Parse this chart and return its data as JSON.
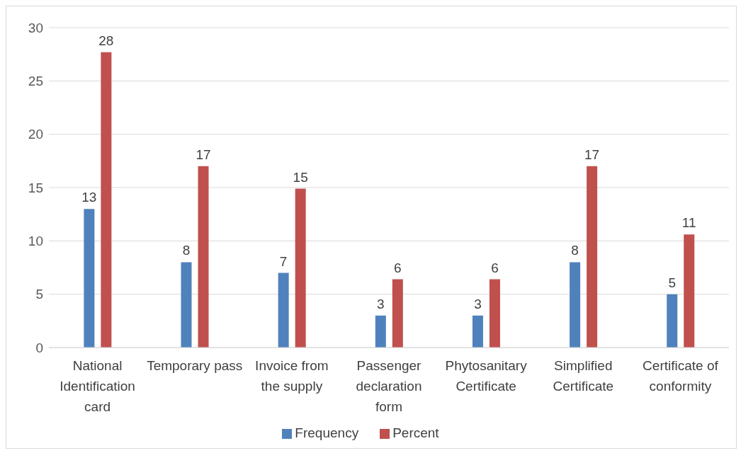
{
  "chart_data": {
    "type": "bar",
    "categories": [
      "National Identification card",
      "Temporary pass",
      "Invoice from the supply",
      "Passenger declaration form",
      "Phytosanitary Certificate",
      "Simplified Certificate",
      "Certificate of conformity"
    ],
    "series": [
      {
        "name": "Frequency",
        "color": "#4f81bd",
        "values": [
          13,
          8,
          7,
          3,
          3,
          8,
          5
        ],
        "value_labels": [
          "13",
          "8",
          "7",
          "3",
          "3",
          "8",
          "5"
        ]
      },
      {
        "name": "Percent",
        "color": "#c0504d",
        "values": [
          27.7,
          17,
          14.9,
          6.4,
          6.4,
          17,
          10.6
        ],
        "value_labels": [
          "28",
          "17",
          "15",
          "6",
          "6",
          "17",
          "11"
        ]
      }
    ],
    "ylim": [
      0,
      30
    ],
    "yticks": [
      0,
      5,
      10,
      15,
      20,
      25,
      30
    ],
    "grid": "y",
    "legend": "bottom"
  }
}
